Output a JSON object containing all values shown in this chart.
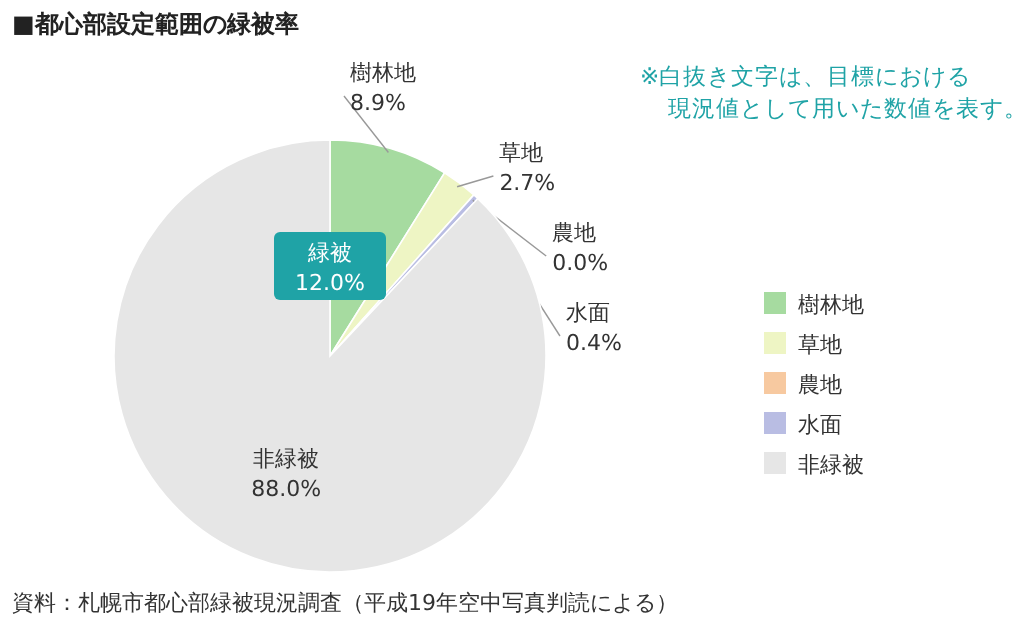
{
  "chart_data": {
    "type": "pie",
    "title": "■都心部設定範囲の緑被率",
    "categories": [
      "樹林地",
      "草地",
      "農地",
      "水面",
      "非緑被"
    ],
    "values": [
      8.9,
      2.7,
      0.0,
      0.4,
      88.0
    ],
    "value_labels": [
      "8.9%",
      "2.7%",
      "0.0%",
      "0.4%",
      "88.0%"
    ],
    "colors": [
      "#a6dba0",
      "#eef5c4",
      "#f7c9a0",
      "#b9bde3",
      "#e6e6e6"
    ],
    "legend": "right",
    "annotations": [
      "※白抜き文字は、目標における現況値として用いた数値を表す。",
      "緑被 12.0%",
      "資料：札幌市都心部緑被現況調査（平成19年空中写真判読による）"
    ]
  }
}
